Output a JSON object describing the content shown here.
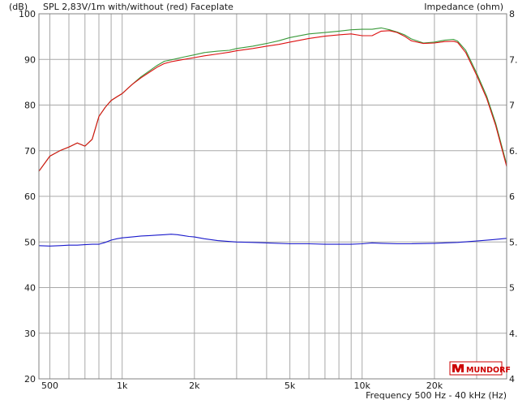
{
  "header": {
    "left_unit": "(dB)",
    "title": "SPL 2,83V/1m with/without (red) Faceplate",
    "right_title": "Impedance  (ohm)"
  },
  "footer": {
    "xlabel": "Frequency 500 Hz - 40 kHz  (Hz)"
  },
  "logo": {
    "text": "MUNDORF",
    "color": "#cc0000"
  },
  "colors": {
    "with_faceplate": "#3a9a3a",
    "without_faceplate": "#dd1111",
    "impedance": "#1a1acc",
    "grid": "#a8a8a8"
  },
  "chart_data": {
    "type": "line",
    "title": "SPL 2,83V/1m with/without (red) Faceplate",
    "xlabel": "Frequency 500 Hz - 40 kHz  (Hz)",
    "ylabel": "(dB)",
    "y2label": "Impedance  (ohm)",
    "xscale": "log",
    "xlim": [
      450,
      40000
    ],
    "ylim": [
      20,
      100
    ],
    "grid": true,
    "x_tick_labels": [
      {
        "value": 500,
        "label": "500"
      },
      {
        "value": 1000,
        "label": "1k"
      },
      {
        "value": 2000,
        "label": "2k"
      },
      {
        "value": 5000,
        "label": "5k"
      },
      {
        "value": 10000,
        "label": "10k"
      },
      {
        "value": 20000,
        "label": "20k"
      }
    ],
    "y_ticks": [
      20,
      30,
      40,
      50,
      60,
      70,
      80,
      90,
      100
    ],
    "y2_tick_labels": [
      "4",
      "4.",
      "5",
      "5.",
      "6",
      "6.",
      "7",
      "7.",
      "8"
    ],
    "series": [
      {
        "key": "with_faceplate",
        "x": [
          450,
          500,
          550,
          600,
          650,
          700,
          750,
          780,
          800,
          850,
          900,
          950,
          1000,
          1100,
          1200,
          1300,
          1400,
          1500,
          1600,
          1800,
          2000,
          2200,
          2500,
          2800,
          3000,
          3500,
          4000,
          4500,
          5000,
          6000,
          7000,
          8000,
          9000,
          10000,
          11000,
          12000,
          13000,
          14000,
          15000,
          16000,
          18000,
          20000,
          22000,
          24000,
          25000,
          27000,
          30000,
          33000,
          36000,
          40000
        ],
        "values": [
          65.5,
          68.8,
          70.0,
          70.8,
          71.7,
          71.0,
          72.5,
          75.5,
          77.5,
          79.5,
          81.0,
          81.8,
          82.5,
          84.5,
          86.2,
          87.5,
          88.7,
          89.6,
          89.9,
          90.5,
          91.0,
          91.5,
          91.8,
          92.0,
          92.4,
          92.9,
          93.5,
          94.1,
          94.8,
          95.6,
          95.9,
          96.2,
          96.5,
          96.6,
          96.6,
          96.9,
          96.5,
          96.0,
          95.4,
          94.5,
          93.6,
          93.8,
          94.2,
          94.4,
          94.0,
          92.0,
          87.0,
          82.0,
          76.0,
          67.0
        ]
      },
      {
        "key": "without_faceplate",
        "x": [
          450,
          500,
          550,
          600,
          650,
          700,
          750,
          780,
          800,
          850,
          900,
          950,
          1000,
          1100,
          1200,
          1300,
          1400,
          1500,
          1600,
          1800,
          2000,
          2200,
          2500,
          2800,
          3000,
          3500,
          4000,
          4500,
          5000,
          6000,
          7000,
          8000,
          9000,
          10000,
          11000,
          12000,
          13000,
          14000,
          15000,
          16000,
          18000,
          20000,
          22000,
          24000,
          25000,
          27000,
          30000,
          33000,
          36000,
          40000
        ],
        "values": [
          65.5,
          68.8,
          70.0,
          70.8,
          71.7,
          71.0,
          72.5,
          75.5,
          77.5,
          79.5,
          81.0,
          81.8,
          82.5,
          84.5,
          86.0,
          87.2,
          88.3,
          89.1,
          89.5,
          90.0,
          90.4,
          90.8,
          91.2,
          91.6,
          91.9,
          92.4,
          92.9,
          93.3,
          93.8,
          94.6,
          95.1,
          95.4,
          95.6,
          95.2,
          95.2,
          96.2,
          96.3,
          95.9,
          95.1,
          94.1,
          93.5,
          93.6,
          93.9,
          94.0,
          93.7,
          91.5,
          86.5,
          81.5,
          75.5,
          66.5
        ]
      },
      {
        "key": "impedance",
        "x": [
          450,
          500,
          550,
          600,
          650,
          700,
          750,
          800,
          850,
          900,
          950,
          1000,
          1100,
          1200,
          1300,
          1400,
          1500,
          1600,
          1700,
          1800,
          1900,
          2000,
          2200,
          2500,
          2800,
          3000,
          3500,
          4000,
          5000,
          6000,
          7000,
          8000,
          9000,
          10000,
          11000,
          12000,
          14000,
          16000,
          20000,
          25000,
          30000,
          35000,
          40000
        ],
        "values": [
          49.2,
          49.1,
          49.2,
          49.3,
          49.3,
          49.4,
          49.5,
          49.5,
          49.9,
          50.4,
          50.7,
          50.9,
          51.1,
          51.3,
          51.4,
          51.5,
          51.6,
          51.7,
          51.6,
          51.4,
          51.2,
          51.1,
          50.7,
          50.3,
          50.1,
          50.0,
          49.9,
          49.8,
          49.6,
          49.6,
          49.5,
          49.5,
          49.5,
          49.6,
          49.8,
          49.7,
          49.6,
          49.6,
          49.7,
          49.9,
          50.2,
          50.5,
          50.8
        ]
      }
    ]
  }
}
